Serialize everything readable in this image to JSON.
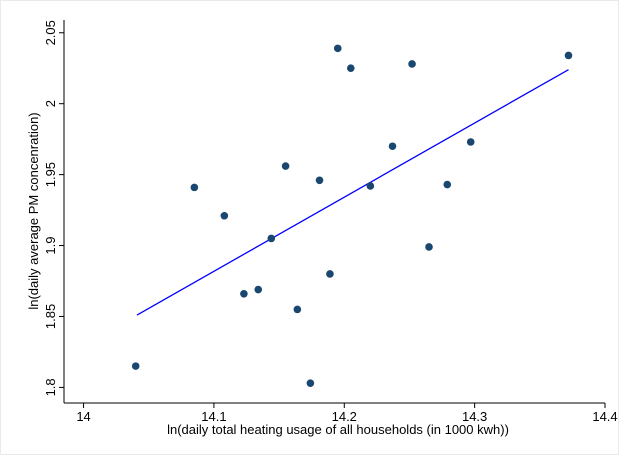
{
  "chart_data": {
    "type": "scatter",
    "x_label": "ln(daily total heating usage of all households (in 1000 kwh))",
    "y_label": "ln(daily average PM concenration)",
    "x": [
      14.04,
      14.085,
      14.108,
      14.123,
      14.134,
      14.144,
      14.155,
      14.164,
      14.174,
      14.181,
      14.189,
      14.195,
      14.205,
      14.22,
      14.237,
      14.252,
      14.265,
      14.279,
      14.297,
      14.372
    ],
    "values": [
      1.815,
      1.941,
      1.921,
      1.866,
      1.869,
      1.905,
      1.956,
      1.855,
      1.803,
      1.946,
      1.88,
      2.039,
      2.025,
      1.942,
      1.97,
      2.028,
      1.899,
      1.943,
      1.973,
      2.034
    ],
    "color": "#1a476f",
    "fit_line": {
      "x": [
        14.041,
        14.372
      ],
      "values": [
        1.851,
        2.024
      ],
      "color": "#0000ff"
    },
    "xlim": [
      13.985,
      14.4
    ],
    "ylim": [
      1.789,
      2.059
    ],
    "xticks": [
      14,
      14.1,
      14.2,
      14.3,
      14.4
    ],
    "yticks": [
      1.8,
      1.85,
      1.9,
      1.95,
      2,
      2.05
    ],
    "grid": false
  }
}
